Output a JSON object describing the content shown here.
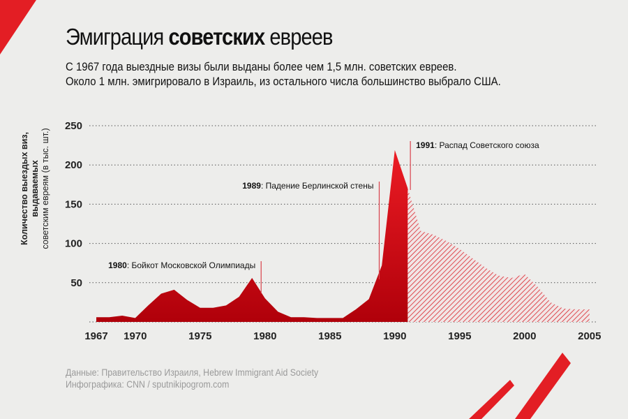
{
  "title": {
    "part1": "Эмиграция ",
    "part2": "советских",
    "part3": " евреев"
  },
  "subtitle": [
    "С 1967 года выездные визы были выданы более чем 1,5 млн. советских евреев.",
    "Около 1 млн. эмигрировало в Израиль, из остального числа большинство выбрало США."
  ],
  "footer": {
    "source": "Данные: Правительство Израиля, Hebrew Immigrant Aid Society",
    "credit": "Инфографика: CNN / sputnikipogrom.com"
  },
  "colors": {
    "accent": "#e31e24",
    "area_dark": "#b3000c",
    "hatch": "#d8232a",
    "background": "#ededeb"
  },
  "chart_data": {
    "type": "area",
    "ylabel_line1": "Количество выездых виз, выдаваемых",
    "ylabel_line2": "советским евреям (в тыс. шт.)",
    "ylim": [
      0,
      250
    ],
    "yticks": [
      50,
      100,
      150,
      200,
      250
    ],
    "xticks": [
      1967,
      1970,
      1975,
      1980,
      1985,
      1990,
      1995,
      2000,
      2005
    ],
    "xlim": [
      1967,
      2005
    ],
    "grid": "horizontal dotted",
    "series": [
      {
        "style": "solid",
        "x": [
          1967,
          1968,
          1969,
          1970,
          1971,
          1972,
          1973,
          1974,
          1975,
          1976,
          1977,
          1978,
          1979,
          1980,
          1981,
          1982,
          1983,
          1984,
          1985,
          1986,
          1987,
          1988,
          1989,
          1990,
          1991
        ],
        "y": [
          6,
          6,
          8,
          5,
          21,
          36,
          41,
          28,
          18,
          18,
          21,
          32,
          56,
          30,
          13,
          6,
          6,
          5,
          5,
          5,
          16,
          29,
          72,
          219,
          170
        ]
      },
      {
        "style": "hatched",
        "x": [
          1991,
          1992,
          1993,
          1994,
          1995,
          1996,
          1997,
          1998,
          1999,
          2000,
          2001,
          2002,
          2003,
          2004,
          2005
        ],
        "y": [
          170,
          116,
          111,
          103,
          93,
          81,
          69,
          59,
          56,
          61,
          45,
          25,
          17,
          16,
          16
        ]
      }
    ],
    "annotations": [
      {
        "year": "1980",
        "text": ": Бойкот Московской Олимпиады",
        "x": 1979.7
      },
      {
        "year": "1989",
        "text": ": Падение Берлинской стены",
        "x": 1988.8
      },
      {
        "year": "1991",
        "text": ": Распад Советского союза",
        "x": 1991.2
      }
    ]
  }
}
